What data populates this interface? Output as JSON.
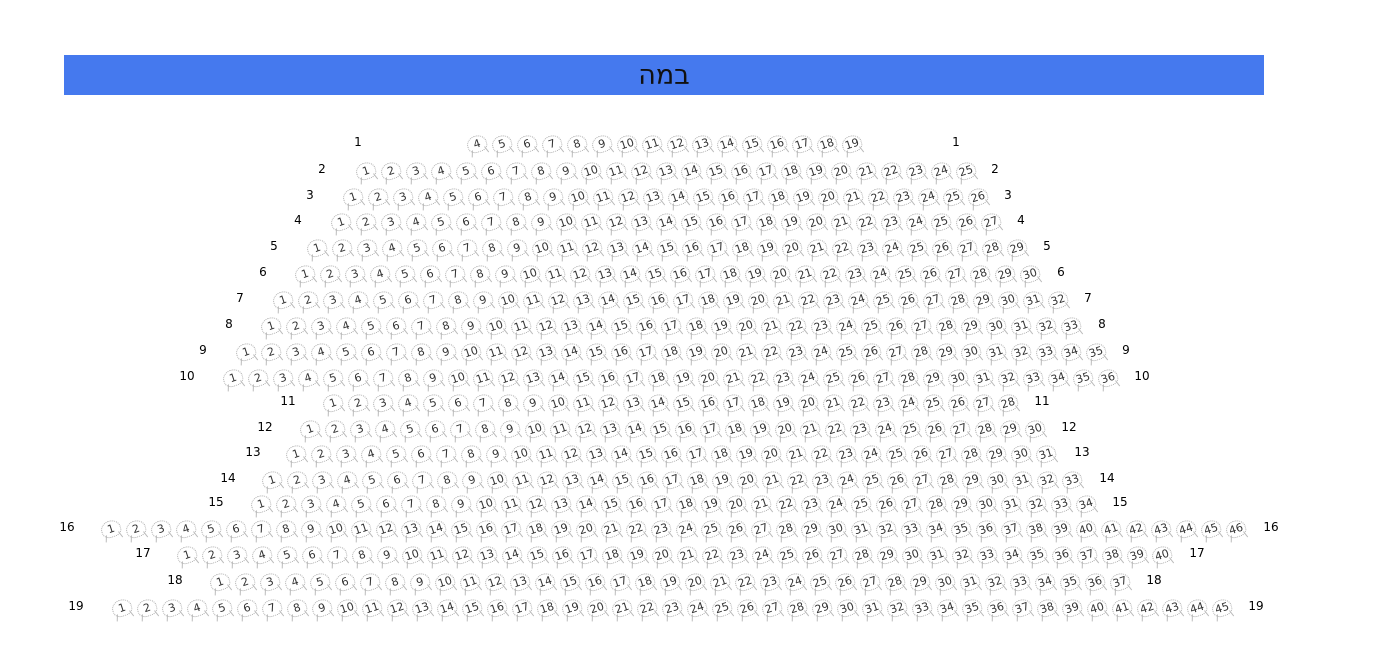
{
  "stage": {
    "label": "במה",
    "color": "#4579ee"
  },
  "rows": [
    {
      "label": "1",
      "first": 4,
      "last": 19
    },
    {
      "label": "2",
      "first": 1,
      "last": 25
    },
    {
      "label": "3",
      "first": 1,
      "last": 26
    },
    {
      "label": "4",
      "first": 1,
      "last": 27
    },
    {
      "label": "5",
      "first": 1,
      "last": 29
    },
    {
      "label": "6",
      "first": 1,
      "last": 30
    },
    {
      "label": "7",
      "first": 1,
      "last": 32
    },
    {
      "label": "8",
      "first": 1,
      "last": 33
    },
    {
      "label": "9",
      "first": 1,
      "last": 35
    },
    {
      "label": "10",
      "first": 1,
      "last": 36
    },
    {
      "label": "11",
      "first": 1,
      "last": 28
    },
    {
      "label": "12",
      "first": 1,
      "last": 30
    },
    {
      "label": "13",
      "first": 1,
      "last": 31
    },
    {
      "label": "14",
      "first": 1,
      "last": 33
    },
    {
      "label": "15",
      "first": 1,
      "last": 34
    },
    {
      "label": "16",
      "first": 1,
      "last": 46
    },
    {
      "label": "17",
      "first": 1,
      "last": 40
    },
    {
      "label": "18",
      "first": 1,
      "last": 37
    },
    {
      "label": "19",
      "first": 1,
      "last": 45
    }
  ]
}
